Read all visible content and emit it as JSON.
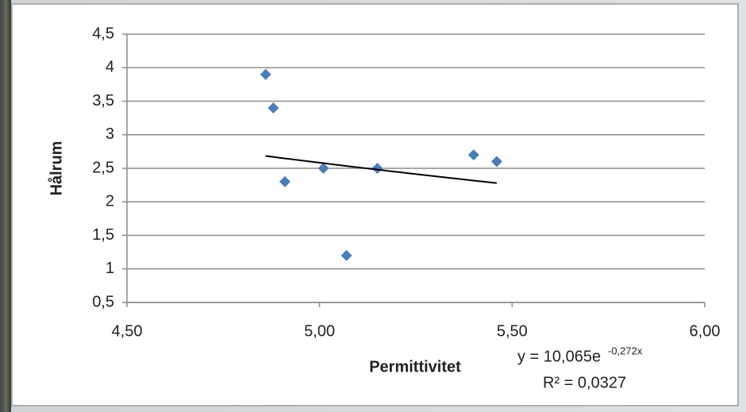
{
  "chart_data": {
    "type": "scatter",
    "x_label": "Permittivitet",
    "y_label": "Hålrum",
    "x": [
      4.86,
      4.88,
      4.91,
      5.01,
      5.07,
      5.15,
      5.4,
      5.46
    ],
    "values": [
      3.9,
      3.4,
      2.3,
      2.5,
      1.2,
      2.5,
      2.7,
      2.6
    ],
    "color": "#4a7ebb",
    "xlim": [
      4.5,
      6.0
    ],
    "xticks": [
      {
        "value": 4.5,
        "label": "4,50"
      },
      {
        "value": 5.0,
        "label": "5,00"
      },
      {
        "value": 5.5,
        "label": "5,50"
      },
      {
        "value": 6.0,
        "label": "6,00"
      }
    ],
    "ylim": [
      0.5,
      4.5
    ],
    "yticks": [
      {
        "value": 0.5,
        "label": "0,5"
      },
      1,
      {
        "value": 1.5,
        "label": "1,5"
      },
      2,
      {
        "value": 2.5,
        "label": "2,5"
      },
      3,
      {
        "value": 3.5,
        "label": "3,5"
      },
      4,
      {
        "value": 4.5,
        "label": "4,5"
      }
    ],
    "grid": true,
    "trendline": {
      "type": "exponential",
      "a": 10.065,
      "b": -0.272,
      "equation": "y = 10,065e",
      "exponent": "-0,272x",
      "r_squared": "R² = 0,0327"
    }
  }
}
